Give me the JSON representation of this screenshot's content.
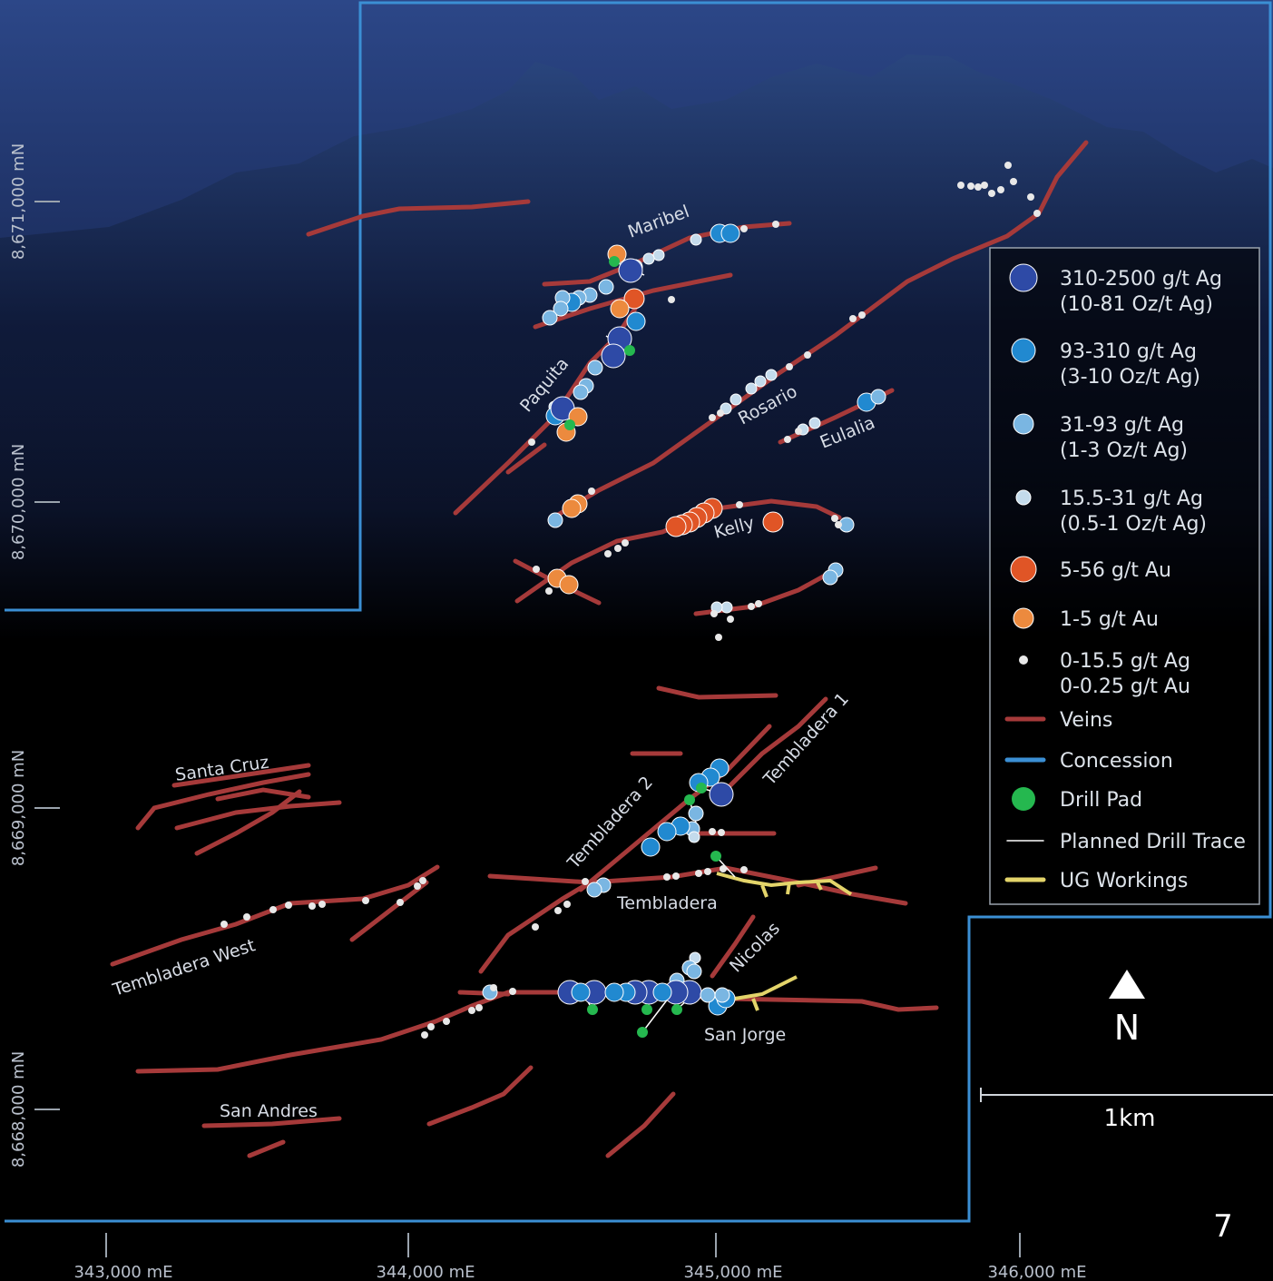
{
  "map": {
    "eastings": [
      "343,000 mE",
      "344,000 mE",
      "345,000 mE",
      "346,000 mE"
    ],
    "northings": [
      "8,671,000 mN",
      "8,670,000 mN",
      "8,669,000 mN",
      "8,668,000 mN"
    ],
    "labels": {
      "maribel": "Maribel",
      "paquita": "Paquita",
      "rosario": "Rosario",
      "eulalia": "Eulalia",
      "kelly": "Kelly",
      "tembladera1": "Tembladera 1",
      "tembladera2": "Tembladera 2",
      "tembladera": "Tembladera",
      "santa_cruz": "Santa Cruz",
      "tembladera_west": "Tembladera West",
      "nicolas": "Nicolas",
      "san_jorge": "San Jorge",
      "san_andres": "San Andres"
    },
    "legend": [
      {
        "lines": [
          "310-2500 g/t Ag",
          "(10-81 Oz/t Ag)"
        ]
      },
      {
        "lines": [
          "93-310 g/t Ag",
          "(3-10 Oz/t Ag)"
        ]
      },
      {
        "lines": [
          "31-93 g/t Ag",
          "(1-3 Oz/t Ag)"
        ]
      },
      {
        "lines": [
          "15.5-31 g/t Ag",
          "(0.5-1 Oz/t Ag)"
        ]
      },
      {
        "lines": [
          "5-56 g/t Au"
        ]
      },
      {
        "lines": [
          "1-5 g/t Au"
        ]
      },
      {
        "lines": [
          "0-15.5 g/t Ag",
          "0-0.25 g/t Au"
        ]
      },
      {
        "lines": [
          "Veins"
        ]
      },
      {
        "lines": [
          "Concession"
        ]
      },
      {
        "lines": [
          "Drill Pad"
        ]
      },
      {
        "lines": [
          "Planned Drill Trace"
        ]
      },
      {
        "lines": [
          "UG Workings"
        ]
      }
    ],
    "north": "N",
    "scale": "1km",
    "page": "7"
  }
}
